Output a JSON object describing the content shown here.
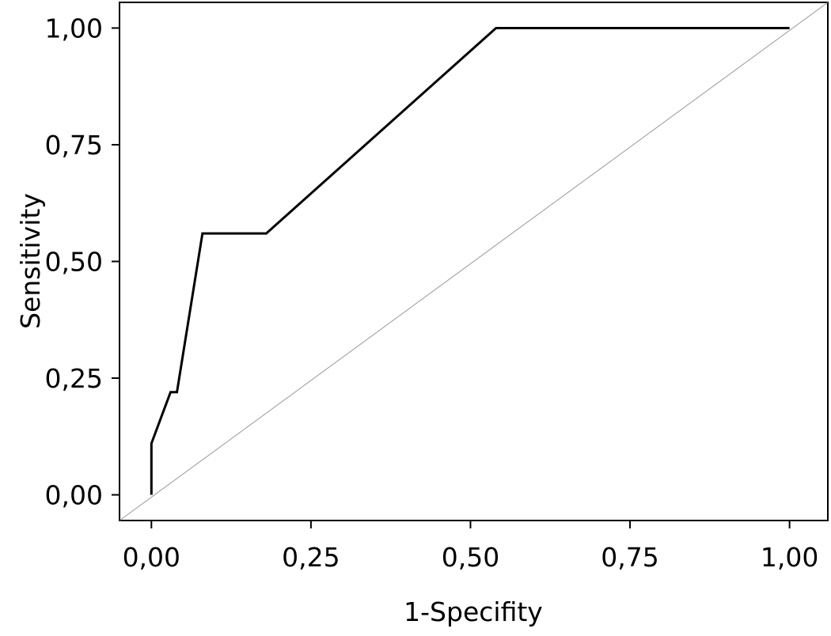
{
  "chart_data": {
    "type": "line",
    "title": "",
    "xlabel": "1-Specifity",
    "ylabel": "Sensitivity",
    "xlim": [
      -0.05,
      1.06
    ],
    "ylim": [
      -0.055,
      1.055
    ],
    "x_ticks": [
      0,
      0.25,
      0.5,
      0.75,
      1
    ],
    "y_ticks": [
      0,
      0.25,
      0.5,
      0.75,
      1
    ],
    "x_tick_labels": [
      "0,00",
      "0,25",
      "0,50",
      "0,75",
      "1,00"
    ],
    "y_tick_labels": [
      "0,00",
      "0,25",
      "0,50",
      "0,75",
      "1,00"
    ],
    "grid": false,
    "series": [
      {
        "x": [
          0,
          0,
          0.03,
          0.04,
          0.08,
          0.18,
          0.54,
          1.0
        ],
        "y": [
          0,
          0.11,
          0.22,
          0.22,
          0.56,
          0.56,
          1.0,
          1.0
        ],
        "color": "#000000"
      },
      {
        "x": [
          -0.05,
          1.06
        ],
        "y": [
          -0.055,
          1.055
        ],
        "color": "#999999"
      }
    ]
  }
}
